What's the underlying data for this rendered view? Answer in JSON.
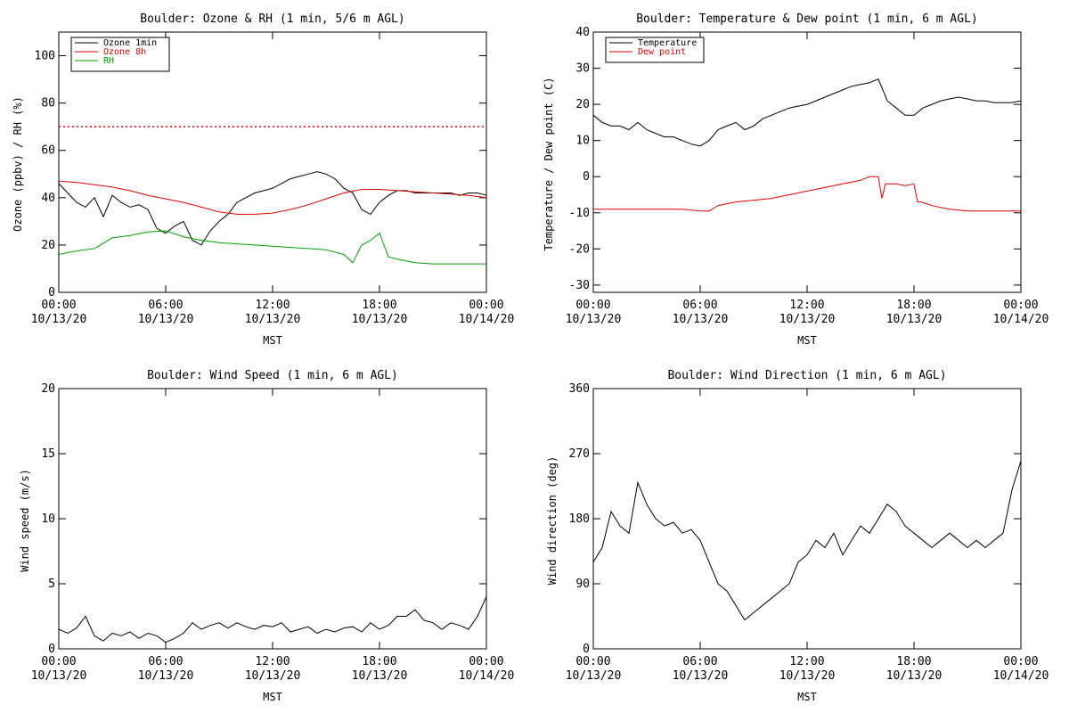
{
  "colors": {
    "black": "#000000",
    "red": "#dd0000",
    "green": "#00a000"
  },
  "chart_data": [
    {
      "type": "line",
      "title": "Boulder: Ozone & RH (1 min, 5/6 m AGL)",
      "xlabel": "MST",
      "ylabel": "Ozone (ppbv) / RH (%)",
      "xlim": [
        0,
        24
      ],
      "ylim": [
        0,
        110
      ],
      "yticks": [
        "0",
        "20",
        "40",
        "60",
        "80",
        "100"
      ],
      "xticks": [
        {
          "time": "00:00",
          "date": "10/13/20"
        },
        {
          "time": "06:00",
          "date": "10/13/20"
        },
        {
          "time": "12:00",
          "date": "10/13/20"
        },
        {
          "time": "18:00",
          "date": "10/13/20"
        },
        {
          "time": "00:00",
          "date": "10/14/20"
        }
      ],
      "legend": {
        "placement": "top-left",
        "entries": [
          "Ozone 1min",
          "Ozone 8h",
          "RH"
        ]
      },
      "reference_line": {
        "y": 70,
        "style": "dotted",
        "color": "#dd0000"
      },
      "series": [
        {
          "name": "Ozone 1min",
          "color": "#000000",
          "x": [
            0,
            0.5,
            1,
            1.5,
            2,
            2.5,
            3,
            3.5,
            4,
            4.5,
            5,
            5.5,
            6,
            6.5,
            7,
            7.5,
            8,
            8.5,
            9,
            9.5,
            10,
            10.5,
            11,
            11.5,
            12,
            12.5,
            13,
            13.5,
            14,
            14.5,
            15,
            15.5,
            16,
            16.5,
            17,
            17.5,
            18,
            18.5,
            19,
            19.5,
            20,
            20.5,
            21,
            21.5,
            22,
            22.5,
            23,
            23.5,
            24
          ],
          "y": [
            46,
            42,
            38,
            36,
            40,
            32,
            41,
            38,
            36,
            37,
            35,
            27,
            25,
            28,
            30,
            22,
            20,
            26,
            30,
            33,
            38,
            40,
            42,
            43,
            44,
            46,
            48,
            49,
            50,
            51,
            50,
            48,
            44,
            42,
            35,
            33,
            38,
            41,
            43,
            43,
            42,
            42,
            42,
            42,
            42,
            41,
            42,
            42,
            41
          ]
        },
        {
          "name": "Ozone 8h",
          "color": "#dd0000",
          "x": [
            0,
            1,
            2,
            3,
            4,
            5,
            6,
            7,
            8,
            9,
            10,
            11,
            12,
            13,
            14,
            15,
            16,
            17,
            18,
            19,
            20,
            21,
            22,
            23,
            24
          ],
          "y": [
            47,
            46.5,
            45.5,
            44.5,
            43,
            41,
            39.5,
            38,
            36,
            34,
            33,
            33,
            33.5,
            35,
            37,
            39.5,
            42,
            43.5,
            43.5,
            43,
            42.5,
            42,
            41.5,
            41,
            40
          ]
        },
        {
          "name": "RH",
          "color": "#00a000",
          "x": [
            0,
            1,
            2,
            3,
            4,
            5,
            6,
            7,
            8,
            9,
            10,
            11,
            12,
            13,
            14,
            15,
            16,
            16.5,
            17,
            17.5,
            18,
            18.5,
            19,
            20,
            21,
            22,
            23,
            24
          ],
          "y": [
            16,
            17.5,
            18.5,
            23,
            24,
            25.5,
            26,
            23.5,
            22,
            21,
            20.5,
            20,
            19.5,
            19,
            18.5,
            18,
            16,
            12.5,
            20,
            22,
            25,
            15,
            14,
            12.5,
            12,
            12,
            12,
            12
          ]
        }
      ]
    },
    {
      "type": "line",
      "title": "Boulder: Temperature & Dew point (1 min, 6 m AGL)",
      "xlabel": "MST",
      "ylabel": "Temperature / Dew point (C)",
      "xlim": [
        0,
        24
      ],
      "ylim": [
        -32,
        40
      ],
      "yticks": [
        "-30",
        "-20",
        "-10",
        "0",
        "10",
        "20",
        "30",
        "40"
      ],
      "xticks": [
        {
          "time": "00:00",
          "date": "10/13/20"
        },
        {
          "time": "06:00",
          "date": "10/13/20"
        },
        {
          "time": "12:00",
          "date": "10/13/20"
        },
        {
          "time": "18:00",
          "date": "10/13/20"
        },
        {
          "time": "00:00",
          "date": "10/14/20"
        }
      ],
      "legend": {
        "placement": "top-left",
        "entries": [
          "Temperature",
          "Dew point"
        ]
      },
      "series": [
        {
          "name": "Temperature",
          "color": "#000000",
          "x": [
            0,
            0.5,
            1,
            1.5,
            2,
            2.5,
            3,
            3.5,
            4,
            4.5,
            5,
            5.5,
            6,
            6.5,
            7,
            7.5,
            8,
            8.5,
            9,
            9.5,
            10,
            10.5,
            11,
            11.5,
            12,
            12.5,
            13,
            13.5,
            14,
            14.5,
            15,
            15.5,
            16,
            16.5,
            17,
            17.5,
            18,
            18.5,
            19,
            19.5,
            20,
            20.5,
            21,
            21.5,
            22,
            22.5,
            23,
            23.5,
            24
          ],
          "y": [
            17,
            15,
            14,
            14,
            13,
            15,
            13,
            12,
            11,
            11,
            10,
            9,
            8.5,
            10,
            13,
            14,
            15,
            13,
            14,
            16,
            17,
            18,
            19,
            19.5,
            20,
            21,
            22,
            23,
            24,
            25,
            25.5,
            26,
            27,
            21,
            19,
            17,
            17,
            19,
            20,
            21,
            21.5,
            22,
            21.5,
            21,
            21,
            20.5,
            20.5,
            20.5,
            21
          ]
        },
        {
          "name": "Dew point",
          "color": "#dd0000",
          "x": [
            0,
            1,
            2,
            3,
            4,
            5,
            6,
            6.5,
            7,
            7.5,
            8,
            9,
            10,
            11,
            12,
            13,
            14,
            15,
            15.5,
            16,
            16.2,
            16.4,
            16.6,
            17,
            17.5,
            18,
            18.2,
            18.4,
            18.7,
            19,
            20,
            21,
            22,
            23,
            24
          ],
          "y": [
            -9,
            -9,
            -9,
            -9,
            -9,
            -9,
            -9.5,
            -9.5,
            -8,
            -7.5,
            -7,
            -6.5,
            -6,
            -5,
            -4,
            -3,
            -2,
            -1,
            0,
            0,
            -6,
            -2,
            -2,
            -2,
            -2.5,
            -2,
            -7,
            -7,
            -7.5,
            -8,
            -9,
            -9.5,
            -9.5,
            -9.5,
            -9.5
          ]
        }
      ]
    },
    {
      "type": "line",
      "title": "Boulder: Wind Speed (1 min, 6 m AGL)",
      "xlabel": "MST",
      "ylabel": "Wind speed (m/s)",
      "xlim": [
        0,
        24
      ],
      "ylim": [
        0,
        20
      ],
      "yticks": [
        "0",
        "5",
        "10",
        "15",
        "20"
      ],
      "xticks": [
        {
          "time": "00:00",
          "date": "10/13/20"
        },
        {
          "time": "06:00",
          "date": "10/13/20"
        },
        {
          "time": "12:00",
          "date": "10/13/20"
        },
        {
          "time": "18:00",
          "date": "10/13/20"
        },
        {
          "time": "00:00",
          "date": "10/14/20"
        }
      ],
      "series": [
        {
          "name": "",
          "color": "#000000",
          "x": [
            0,
            0.5,
            1,
            1.5,
            2,
            2.5,
            3,
            3.5,
            4,
            4.5,
            5,
            5.5,
            6,
            6.5,
            7,
            7.5,
            8,
            8.5,
            9,
            9.5,
            10,
            10.5,
            11,
            11.5,
            12,
            12.5,
            13,
            13.5,
            14,
            14.5,
            15,
            15.5,
            16,
            16.5,
            17,
            17.5,
            18,
            18.5,
            19,
            19.5,
            20,
            20.5,
            21,
            21.5,
            22,
            22.5,
            23,
            23.5,
            24
          ],
          "y": [
            1.5,
            1.2,
            1.6,
            2.5,
            1,
            0.6,
            1.2,
            1,
            1.3,
            0.8,
            1.2,
            1,
            0.5,
            0.8,
            1.2,
            2,
            1.5,
            1.8,
            2,
            1.6,
            2,
            1.7,
            1.5,
            1.8,
            1.7,
            2,
            1.3,
            1.5,
            1.7,
            1.2,
            1.5,
            1.3,
            1.6,
            1.7,
            1.3,
            2,
            1.5,
            1.8,
            2.5,
            2.5,
            3,
            2.2,
            2,
            1.5,
            2,
            1.8,
            1.5,
            2.5,
            4
          ]
        }
      ]
    },
    {
      "type": "line",
      "title": "Boulder: Wind Direction (1 min, 6 m AGL)",
      "xlabel": "MST",
      "ylabel": "Wind direction (deg)",
      "xlim": [
        0,
        24
      ],
      "ylim": [
        0,
        360
      ],
      "yticks": [
        "0",
        "90",
        "180",
        "270",
        "360"
      ],
      "xticks": [
        {
          "time": "00:00",
          "date": "10/13/20"
        },
        {
          "time": "06:00",
          "date": "10/13/20"
        },
        {
          "time": "12:00",
          "date": "10/13/20"
        },
        {
          "time": "18:00",
          "date": "10/13/20"
        },
        {
          "time": "00:00",
          "date": "10/14/20"
        }
      ],
      "series": [
        {
          "name": "",
          "color": "#000000",
          "x": [
            0,
            0.5,
            1,
            1.5,
            2,
            2.5,
            3,
            3.5,
            4,
            4.5,
            5,
            5.5,
            6,
            6.5,
            7,
            7.5,
            8,
            8.5,
            9,
            9.5,
            10,
            10.5,
            11,
            11.5,
            12,
            12.5,
            13,
            13.5,
            14,
            14.5,
            15,
            15.5,
            16,
            16.5,
            17,
            17.5,
            18,
            18.5,
            19,
            19.5,
            20,
            20.5,
            21,
            21.5,
            22,
            22.5,
            23,
            23.5,
            24
          ],
          "y": [
            120,
            140,
            190,
            170,
            160,
            230,
            200,
            180,
            170,
            175,
            160,
            165,
            150,
            120,
            90,
            80,
            60,
            40,
            50,
            60,
            70,
            80,
            90,
            120,
            130,
            150,
            140,
            160,
            130,
            150,
            170,
            160,
            180,
            200,
            190,
            170,
            160,
            150,
            140,
            150,
            160,
            150,
            140,
            150,
            140,
            150,
            160,
            220,
            260
          ]
        }
      ]
    }
  ]
}
